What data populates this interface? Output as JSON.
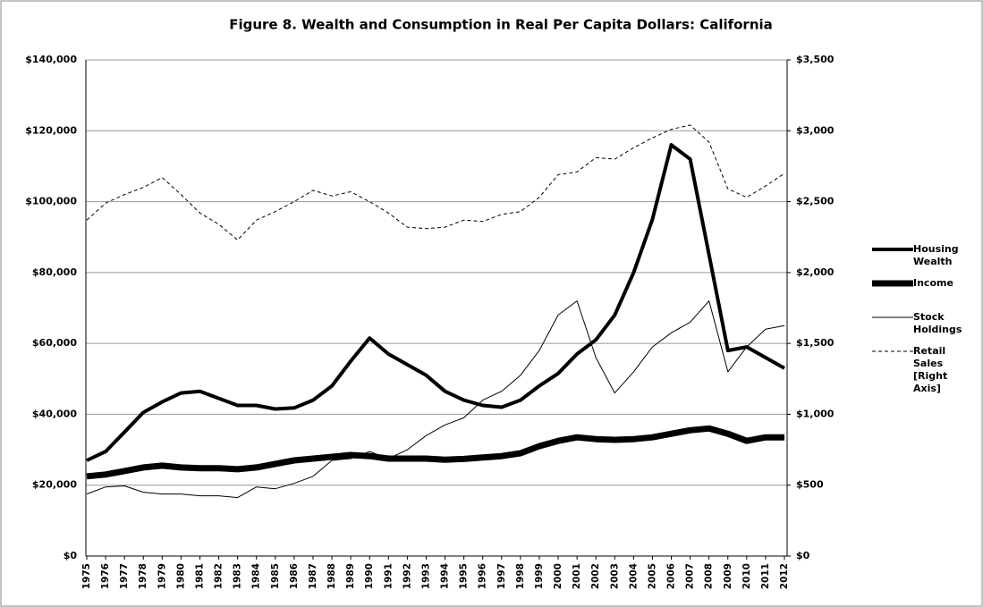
{
  "chart_data": {
    "type": "line",
    "title": "Figure 8. Wealth and Consumption in Real Per Capita Dollars: California",
    "categories": [
      "1975",
      "1976",
      "1977",
      "1978",
      "1979",
      "1980",
      "1981",
      "1982",
      "1983",
      "1984",
      "1985",
      "1986",
      "1987",
      "1988",
      "1989",
      "1990",
      "1991",
      "1992",
      "1993",
      "1994",
      "1995",
      "1996",
      "1997",
      "1998",
      "1999",
      "2000",
      "2001",
      "2002",
      "2003",
      "2004",
      "2005",
      "2006",
      "2007",
      "2008",
      "2009",
      "2010",
      "2011",
      "2012"
    ],
    "series": [
      {
        "name": "Housing Wealth",
        "color": "#000000",
        "width": 4,
        "dash": "none",
        "values": [
          27000,
          29500,
          35000,
          40500,
          43500,
          46000,
          46500,
          44500,
          42500,
          42500,
          41500,
          41800,
          44000,
          48000,
          55000,
          61500,
          57000,
          54000,
          51000,
          46500,
          44000,
          42500,
          42000,
          44000,
          48000,
          51500,
          57000,
          61000,
          68000,
          80000,
          95000,
          116000,
          112000,
          85000,
          58000,
          59000,
          56000,
          53000
        ]
      },
      {
        "name": "Income",
        "color": "#000000",
        "width": 7,
        "dash": "none",
        "values": [
          22500,
          23000,
          24000,
          25000,
          25500,
          25000,
          24800,
          24800,
          24500,
          25000,
          26000,
          27000,
          27500,
          28000,
          28500,
          28200,
          27500,
          27500,
          27500,
          27200,
          27400,
          27800,
          28200,
          29000,
          31000,
          32500,
          33500,
          33000,
          32800,
          33000,
          33500,
          34500,
          35500,
          36000,
          34500,
          32500,
          33500,
          33500
        ]
      },
      {
        "name": "Stock Holdings",
        "color": "#000000",
        "width": 1,
        "dash": "none",
        "values": [
          17500,
          19500,
          19800,
          18000,
          17500,
          17500,
          17000,
          17000,
          16500,
          19500,
          19000,
          20500,
          22500,
          27000,
          27500,
          29500,
          27500,
          30000,
          34000,
          37000,
          39000,
          44000,
          46500,
          51000,
          58000,
          68000,
          72000,
          56000,
          46000,
          52000,
          59000,
          63000,
          66000,
          72000,
          52000,
          59000,
          64000,
          65000
        ]
      },
      {
        "name": "Retail Sales [Right Axis]",
        "color": "#000000",
        "width": 1,
        "dash": "4 3",
        "axis": "y2",
        "values": [
          2370,
          2490,
          2550,
          2600,
          2670,
          2550,
          2420,
          2340,
          2230,
          2370,
          2430,
          2500,
          2580,
          2540,
          2570,
          2500,
          2420,
          2320,
          2310,
          2320,
          2370,
          2360,
          2410,
          2430,
          2530,
          2690,
          2710,
          2810,
          2800,
          2880,
          2950,
          3010,
          3040,
          2920,
          2590,
          2530,
          2610,
          2700
        ]
      }
    ],
    "ylim": [
      0,
      140000
    ],
    "yticks": [
      {
        "value": 0,
        "label": "$0"
      },
      {
        "value": 20000,
        "label": "$20,000"
      },
      {
        "value": 40000,
        "label": "$40,000"
      },
      {
        "value": 60000,
        "label": "$60,000"
      },
      {
        "value": 80000,
        "label": "$80,000"
      },
      {
        "value": 100000,
        "label": "$100,000"
      },
      {
        "value": 120000,
        "label": "$120,000"
      },
      {
        "value": 140000,
        "label": "$140,000"
      }
    ],
    "y2lim": [
      0,
      3500
    ],
    "y2ticks": [
      {
        "value": 0,
        "label": "$0"
      },
      {
        "value": 500,
        "label": "$500"
      },
      {
        "value": 1000,
        "label": "$1,000"
      },
      {
        "value": 1500,
        "label": "$1,500"
      },
      {
        "value": 2000,
        "label": "$2,000"
      },
      {
        "value": 2500,
        "label": "$2,500"
      },
      {
        "value": 3000,
        "label": "$3,000"
      },
      {
        "value": 3500,
        "label": "$3,500"
      }
    ],
    "grid": true,
    "legend": "right"
  }
}
